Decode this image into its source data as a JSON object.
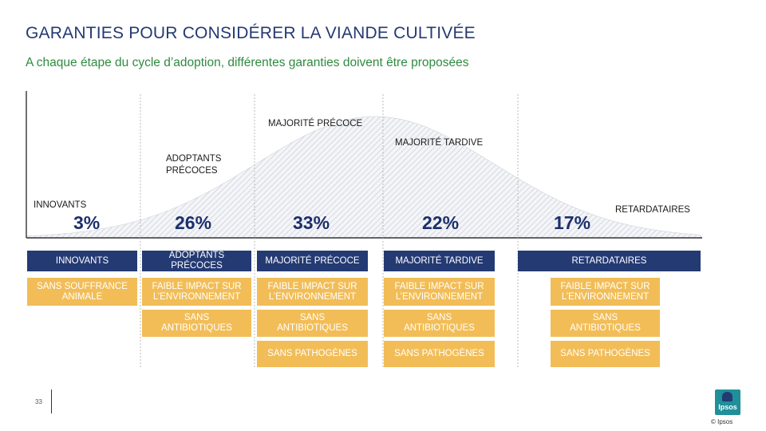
{
  "title": "GARANTIES POUR CONSIDÉRER LA VIANDE CULTIVÉE",
  "subtitle": "A chaque étape du cycle d’adoption, différentes garanties doivent être proposées",
  "curve_labels": {
    "majorite_precoce": "MAJORITÉ PRÉCOCE",
    "majorite_tardive": "MAJORITÉ TARDIVE",
    "adoptants_precoces_line1": "ADOPTANTS",
    "adoptants_precoces_line2": "PRÉCOCES",
    "innovants": "INNOVANTS",
    "retardataires": "RETARDATAIRES"
  },
  "chart_data": {
    "type": "area",
    "title": "Cycle d’adoption",
    "categories": [
      "INNOVANTS",
      "ADOPTANTS PRÉCOCES",
      "MAJORITÉ PRÉCOCE",
      "MAJORITÉ TARDIVE",
      "RETARDATAIRES"
    ],
    "values": [
      3,
      26,
      33,
      22,
      17
    ],
    "value_labels": [
      "3%",
      "26%",
      "33%",
      "22%",
      "17%"
    ]
  },
  "segments": [
    {
      "label": "INNOVANTS",
      "guarantees": [
        "SANS SOUFFRANCE ANIMALE"
      ]
    },
    {
      "label": "ADOPTANTS PRÉCOCES",
      "guarantees": [
        "FAIBLE IMPACT SUR L’ENVIRONNEMENT",
        "SANS ANTIBIOTIQUES"
      ]
    },
    {
      "label": "MAJORITÉ PRÉCOCE",
      "guarantees": [
        "FAIBLE IMPACT SUR L’ENVIRONNEMENT",
        "SANS ANTIBIOTIQUES",
        "SANS PATHOGÈNES"
      ]
    },
    {
      "label": "MAJORITÉ TARDIVE",
      "guarantees": [
        "FAIBLE IMPACT SUR L’ENVIRONNEMENT",
        "SANS ANTIBIOTIQUES",
        "SANS PATHOGÈNES"
      ]
    },
    {
      "label": "RETARDATAIRES",
      "guarantees": [
        "FAIBLE IMPACT SUR L’ENVIRONNEMENT",
        "SANS ANTIBIOTIQUES",
        "SANS PATHOGÈNES"
      ]
    }
  ],
  "page_number": "33",
  "logo_text": "Ipsos",
  "copyright": "© Ipsos",
  "colors": {
    "title": "#243a73",
    "subtitle": "#2e8b3e",
    "navy": "#243a73",
    "gold": "#f2bd57",
    "percent": "#1c2f6b",
    "logo": "#1f8f9a"
  }
}
